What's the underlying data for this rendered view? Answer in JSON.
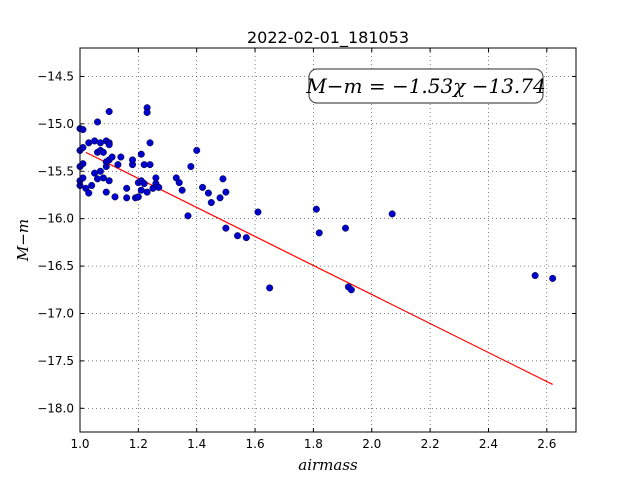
{
  "chart_data": {
    "type": "scatter",
    "title": "2022-02-01_181053",
    "xlabel": "airmass",
    "ylabel": "M−m",
    "xlim": [
      1.0,
      2.7
    ],
    "ylim": [
      -18.25,
      -14.2
    ],
    "xticks": [
      1.0,
      1.2,
      1.4,
      1.6,
      1.8,
      2.0,
      2.2,
      2.4,
      2.6
    ],
    "xtick_labels": [
      "1.0",
      "1.2",
      "1.4",
      "1.6",
      "1.8",
      "2.0",
      "2.2",
      "2.4",
      "2.6"
    ],
    "yticks": [
      -14.5,
      -15.0,
      -15.5,
      -16.0,
      -16.5,
      -17.0,
      -17.5,
      -18.0
    ],
    "ytick_labels": [
      "−14.5",
      "−15.0",
      "−15.5",
      "−16.0",
      "−16.5",
      "−17.0",
      "−17.5",
      "−18.0"
    ],
    "grid": true,
    "annotation": "M−m = −1.53χ −13.74",
    "fit_line": {
      "slope": -1.53,
      "intercept": -13.74,
      "x_range": [
        1.02,
        2.62
      ],
      "color": "#ff0000"
    },
    "marker_color": "#0000cc",
    "points": [
      [
        1.0,
        -15.05
      ],
      [
        1.01,
        -15.06
      ],
      [
        1.0,
        -15.28
      ],
      [
        1.01,
        -15.25
      ],
      [
        1.0,
        -15.45
      ],
      [
        1.01,
        -15.42
      ],
      [
        1.0,
        -15.6
      ],
      [
        1.01,
        -15.57
      ],
      [
        1.0,
        -15.65
      ],
      [
        1.02,
        -15.68
      ],
      [
        1.03,
        -15.73
      ],
      [
        1.04,
        -15.65
      ],
      [
        1.03,
        -15.2
      ],
      [
        1.05,
        -15.18
      ],
      [
        1.06,
        -14.98
      ],
      [
        1.07,
        -15.2
      ],
      [
        1.06,
        -15.3
      ],
      [
        1.07,
        -15.28
      ],
      [
        1.08,
        -15.3
      ],
      [
        1.09,
        -15.18
      ],
      [
        1.1,
        -15.2
      ],
      [
        1.1,
        -15.22
      ],
      [
        1.1,
        -14.87
      ],
      [
        1.05,
        -15.52
      ],
      [
        1.07,
        -15.5
      ],
      [
        1.06,
        -15.58
      ],
      [
        1.08,
        -15.57
      ],
      [
        1.09,
        -15.45
      ],
      [
        1.09,
        -15.4
      ],
      [
        1.1,
        -15.38
      ],
      [
        1.11,
        -15.35
      ],
      [
        1.1,
        -15.6
      ],
      [
        1.09,
        -15.72
      ],
      [
        1.12,
        -15.77
      ],
      [
        1.13,
        -15.43
      ],
      [
        1.14,
        -15.35
      ],
      [
        1.16,
        -15.68
      ],
      [
        1.16,
        -15.78
      ],
      [
        1.18,
        -15.43
      ],
      [
        1.18,
        -15.38
      ],
      [
        1.2,
        -15.62
      ],
      [
        1.19,
        -15.78
      ],
      [
        1.2,
        -15.77
      ],
      [
        1.21,
        -15.7
      ],
      [
        1.21,
        -15.6
      ],
      [
        1.22,
        -15.63
      ],
      [
        1.21,
        -15.32
      ],
      [
        1.22,
        -15.43
      ],
      [
        1.23,
        -14.83
      ],
      [
        1.23,
        -14.88
      ],
      [
        1.24,
        -15.2
      ],
      [
        1.24,
        -15.43
      ],
      [
        1.25,
        -15.68
      ],
      [
        1.23,
        -15.72
      ],
      [
        1.26,
        -15.63
      ],
      [
        1.26,
        -15.57
      ],
      [
        1.27,
        -15.67
      ],
      [
        1.33,
        -15.57
      ],
      [
        1.34,
        -15.62
      ],
      [
        1.35,
        -15.7
      ],
      [
        1.37,
        -15.97
      ],
      [
        1.38,
        -15.45
      ],
      [
        1.4,
        -15.28
      ],
      [
        1.42,
        -15.67
      ],
      [
        1.44,
        -15.73
      ],
      [
        1.45,
        -15.83
      ],
      [
        1.48,
        -15.78
      ],
      [
        1.49,
        -15.58
      ],
      [
        1.5,
        -15.72
      ],
      [
        1.5,
        -16.1
      ],
      [
        1.54,
        -16.18
      ],
      [
        1.57,
        -16.2
      ],
      [
        1.61,
        -15.93
      ],
      [
        1.65,
        -16.73
      ],
      [
        1.81,
        -15.9
      ],
      [
        1.82,
        -16.15
      ],
      [
        1.91,
        -16.1
      ],
      [
        1.92,
        -16.72
      ],
      [
        1.93,
        -16.75
      ],
      [
        2.07,
        -15.95
      ],
      [
        2.56,
        -16.6
      ],
      [
        2.62,
        -16.63
      ]
    ]
  }
}
